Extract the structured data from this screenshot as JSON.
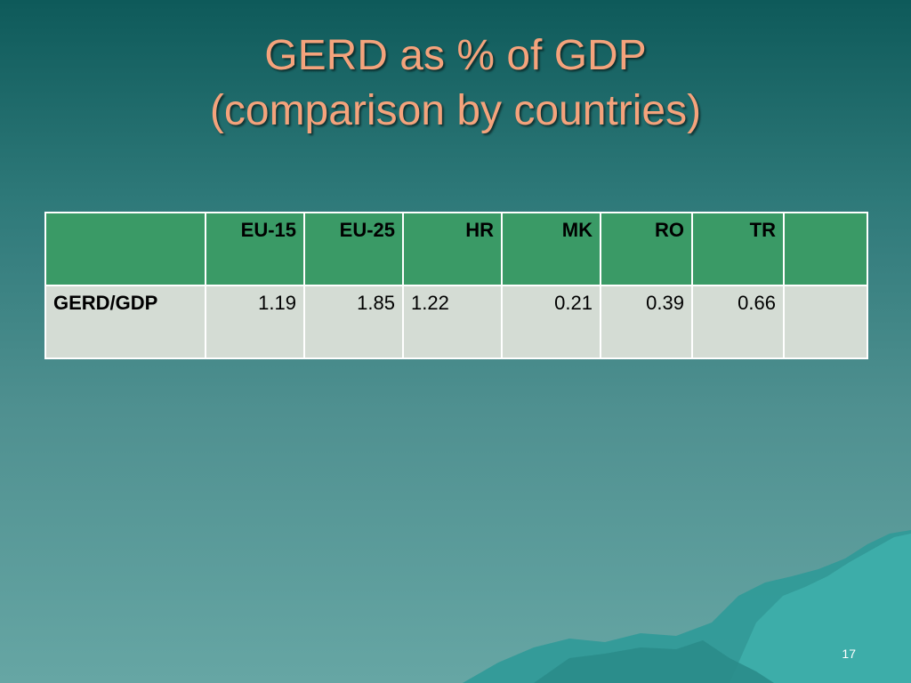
{
  "slide": {
    "title_line1": "GERD as % of GDP",
    "title_line2": "(comparison by countries)",
    "page_number": "17"
  },
  "table": {
    "header": [
      "",
      "EU-15",
      "EU-25",
      "HR",
      "MK",
      "RO",
      "TR",
      ""
    ],
    "rows": [
      {
        "label": "GERD/GDP",
        "values": [
          "1.19",
          "1.85",
          "1.22",
          "0.21",
          "0.39",
          "0.66",
          ""
        ]
      }
    ],
    "highlight_column": "MK"
  },
  "colors": {
    "title": "#f4a37c",
    "header_bg": "#3a9a66",
    "row_bg": "#d4dcd4",
    "highlight": "#e05a10",
    "background_top": "#0e5a5a",
    "background_bottom": "#66a6a4"
  }
}
